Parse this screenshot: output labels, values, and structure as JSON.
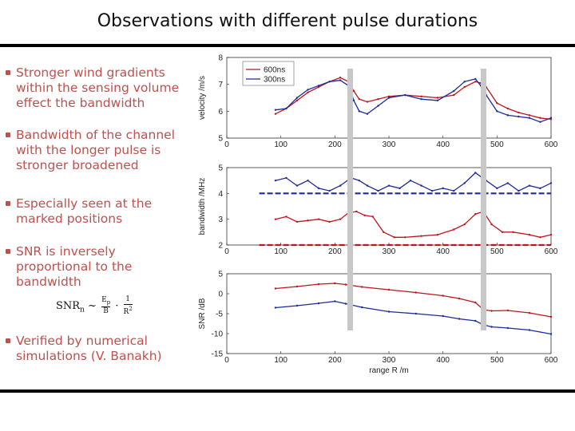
{
  "slide": {
    "title": "Observations with different pulse durations",
    "bullets": [
      "Stronger wind gradients within the sensing volume effect the bandwidth",
      "Bandwidth of the channel with the longer pulse is stronger broadened",
      "Especially seen at the marked positions",
      "SNR is inversely proportional to the bandwidth",
      "Verified by numerical simulations (V. Banakh)"
    ],
    "formula": {
      "lhs": "SNR",
      "sub": "n",
      "tilde": "~",
      "frac1_num": "E",
      "frac1_num_sub": "p",
      "frac1_den": "B",
      "dot": "·",
      "frac2_num": "1",
      "frac2_den": "R",
      "frac2_den_sup": "2"
    }
  },
  "colors": {
    "bullet_text": "#c0504d",
    "series_600ns": "#c0141c",
    "series_300ns": "#1c2a9c",
    "marker": "#c8c8c8"
  },
  "chart_data": [
    {
      "type": "line",
      "ylabel": "velocity /m/s",
      "xlim": [
        0,
        600
      ],
      "ylim": [
        5,
        8
      ],
      "xticks": [
        "0",
        "100",
        "200",
        "300",
        "400",
        "500",
        "600"
      ],
      "yticks": [
        "5",
        "6",
        "7",
        "8"
      ],
      "legend": {
        "position": "top-left",
        "entries": [
          "600ns",
          "300ns"
        ]
      },
      "series": [
        {
          "name": "600ns",
          "color": "#c0141c",
          "x": [
            90,
            110,
            130,
            150,
            170,
            190,
            210,
            225,
            235,
            245,
            260,
            280,
            300,
            330,
            360,
            390,
            420,
            440,
            460,
            470,
            480,
            500,
            520,
            540,
            560,
            580,
            600
          ],
          "y": [
            5.9,
            6.1,
            6.4,
            6.7,
            6.9,
            7.1,
            7.25,
            7.1,
            6.75,
            6.45,
            6.35,
            6.45,
            6.55,
            6.6,
            6.55,
            6.5,
            6.6,
            6.9,
            7.1,
            7.05,
            6.9,
            6.3,
            6.1,
            5.95,
            5.85,
            5.75,
            5.7
          ]
        },
        {
          "name": "300ns",
          "color": "#1c2a9c",
          "x": [
            90,
            110,
            130,
            150,
            170,
            190,
            210,
            225,
            235,
            245,
            260,
            280,
            300,
            330,
            360,
            390,
            420,
            440,
            460,
            470,
            480,
            500,
            520,
            540,
            560,
            580,
            600
          ],
          "y": [
            6.05,
            6.1,
            6.5,
            6.8,
            6.95,
            7.1,
            7.15,
            6.95,
            6.4,
            6.0,
            5.9,
            6.2,
            6.5,
            6.6,
            6.45,
            6.4,
            6.75,
            7.1,
            7.2,
            6.95,
            6.6,
            6.0,
            5.85,
            5.8,
            5.75,
            5.6,
            5.75
          ]
        }
      ]
    },
    {
      "type": "line",
      "ylabel": "bandwidth /MHz",
      "xlim": [
        0,
        600
      ],
      "ylim": [
        2,
        5
      ],
      "xticks": [
        "0",
        "100",
        "200",
        "300",
        "400",
        "500",
        "600"
      ],
      "yticks": [
        "2",
        "3",
        "4",
        "5"
      ],
      "reference_lines": [
        {
          "y": 4.0,
          "color": "#1c2a9c"
        },
        {
          "y": 2.0,
          "color": "#c0141c"
        }
      ],
      "series": [
        {
          "name": "300ns",
          "color": "#1c2a9c",
          "x": [
            90,
            110,
            130,
            150,
            170,
            190,
            210,
            230,
            245,
            260,
            280,
            300,
            320,
            340,
            360,
            380,
            400,
            420,
            440,
            460,
            480,
            500,
            520,
            540,
            560,
            580,
            600
          ],
          "y": [
            4.5,
            4.6,
            4.3,
            4.5,
            4.2,
            4.1,
            4.3,
            4.6,
            4.5,
            4.3,
            4.1,
            4.3,
            4.2,
            4.5,
            4.3,
            4.1,
            4.2,
            4.1,
            4.4,
            4.8,
            4.5,
            4.2,
            4.4,
            4.1,
            4.3,
            4.2,
            4.4
          ]
        },
        {
          "name": "600ns",
          "color": "#c0141c",
          "x": [
            90,
            110,
            130,
            150,
            170,
            190,
            210,
            225,
            240,
            255,
            270,
            290,
            310,
            330,
            360,
            390,
            420,
            440,
            460,
            475,
            490,
            510,
            530,
            560,
            580,
            600
          ],
          "y": [
            3.0,
            3.1,
            2.9,
            2.95,
            3.0,
            2.9,
            3.0,
            3.25,
            3.3,
            3.15,
            3.1,
            2.5,
            2.3,
            2.3,
            2.35,
            2.4,
            2.6,
            2.8,
            3.2,
            3.3,
            2.8,
            2.5,
            2.5,
            2.4,
            2.3,
            2.4
          ]
        }
      ]
    },
    {
      "type": "line",
      "ylabel": "SNR /dB",
      "xlabel": "range R /m",
      "xlim": [
        0,
        600
      ],
      "ylim": [
        -15,
        5
      ],
      "xticks": [
        "0",
        "100",
        "200",
        "300",
        "400",
        "500",
        "600"
      ],
      "yticks": [
        "-15",
        "-10",
        "-5",
        "0",
        "5"
      ],
      "series": [
        {
          "name": "600ns",
          "color": "#c0141c",
          "x": [
            90,
            130,
            170,
            200,
            220,
            250,
            300,
            350,
            400,
            430,
            460,
            475,
            490,
            520,
            560,
            600
          ],
          "y": [
            1.3,
            1.8,
            2.4,
            2.6,
            2.3,
            1.7,
            1.0,
            0.3,
            -0.5,
            -1.2,
            -2.2,
            -4.0,
            -4.3,
            -4.2,
            -4.8,
            -5.8
          ]
        },
        {
          "name": "300ns",
          "color": "#1c2a9c",
          "x": [
            90,
            130,
            170,
            200,
            220,
            250,
            300,
            350,
            400,
            430,
            460,
            475,
            490,
            520,
            560,
            600
          ],
          "y": [
            -3.5,
            -3.0,
            -2.4,
            -1.9,
            -2.5,
            -3.4,
            -4.5,
            -5.0,
            -5.6,
            -6.3,
            -6.8,
            -7.8,
            -8.3,
            -8.6,
            -9.1,
            -10.1
          ]
        }
      ]
    }
  ]
}
